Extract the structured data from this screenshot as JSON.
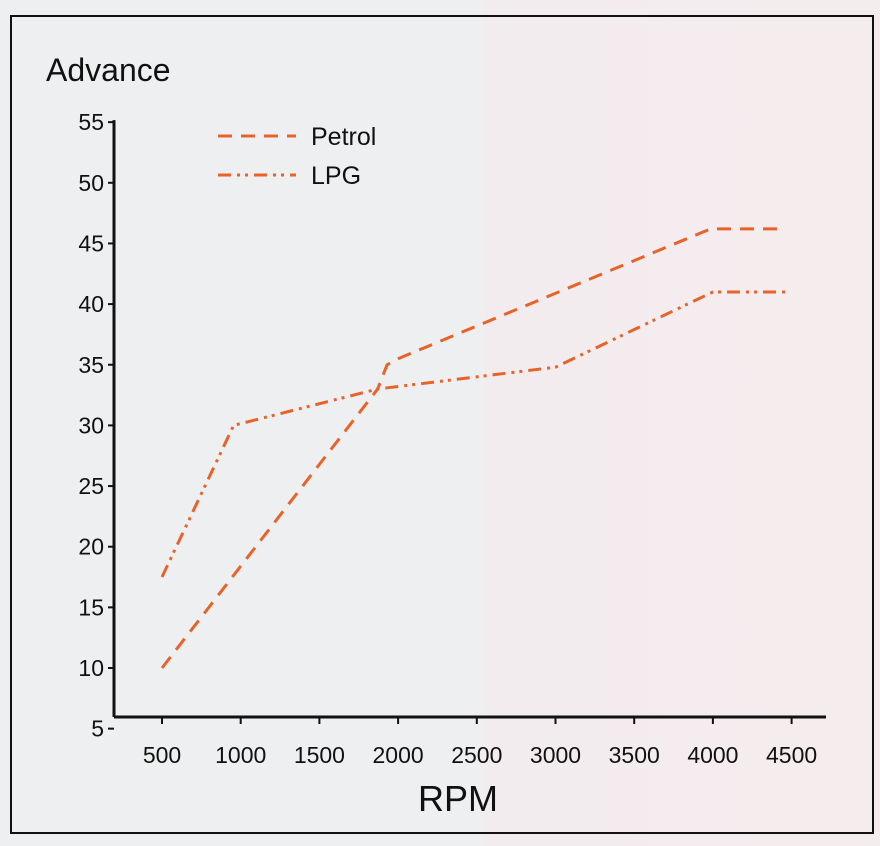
{
  "chart_data": {
    "type": "line",
    "title": "Advance",
    "ylabel": "Advance",
    "xlabel": "RPM",
    "xlim": [
      500,
      4500
    ],
    "ylim": [
      5,
      55
    ],
    "xticks": [
      500,
      1000,
      1500,
      2000,
      2500,
      3000,
      3500,
      4000,
      4500
    ],
    "yticks": [
      5,
      10,
      15,
      20,
      25,
      30,
      35,
      40,
      45,
      50,
      55
    ],
    "grid": false,
    "legend_position": "top-left",
    "series": [
      {
        "name": "Petrol",
        "style": "dashed",
        "color": "#e8632a",
        "x": [
          500,
          1870,
          1930,
          2000,
          3985,
          4430
        ],
        "y": [
          10,
          33,
          35,
          35.5,
          46.2,
          46.2
        ]
      },
      {
        "name": "LPG",
        "style": "dash-dot-dot",
        "color": "#e8632a",
        "x": [
          500,
          955,
          1870,
          3000,
          4000,
          4485
        ],
        "y": [
          17.5,
          30,
          33,
          34.8,
          41,
          41
        ]
      }
    ]
  }
}
